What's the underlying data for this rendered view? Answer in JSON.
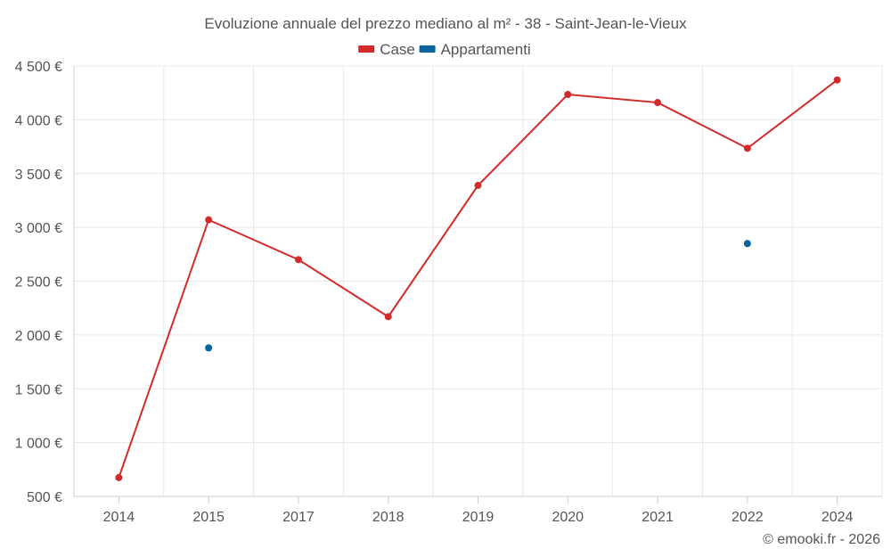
{
  "chart_data": {
    "type": "line",
    "title": "Evoluzione annuale del prezzo mediano al m² - 38 - Saint-Jean-le-Vieux",
    "categories": [
      "2014",
      "2015",
      "2017",
      "2018",
      "2019",
      "2020",
      "2021",
      "2022",
      "2024"
    ],
    "series": [
      {
        "name": "Case",
        "color": "#d32a2a",
        "values": [
          675,
          3070,
          2700,
          2170,
          3390,
          4235,
          4160,
          3735,
          4370
        ]
      },
      {
        "name": "Appartamenti",
        "color": "#07649e",
        "values": [
          null,
          1880,
          null,
          null,
          null,
          null,
          null,
          2850,
          null
        ]
      }
    ],
    "ylim": [
      500,
      4500
    ],
    "yticks": [
      500,
      1000,
      1500,
      2000,
      2500,
      3000,
      3500,
      4000,
      4500
    ],
    "ytick_labels": [
      "500 €",
      "1 000 €",
      "1 500 €",
      "2 000 €",
      "2 500 €",
      "3 000 €",
      "3 500 €",
      "4 000 €",
      "4 500 €"
    ],
    "xlabel": "",
    "ylabel": "",
    "grid": true,
    "legend_position": "top-center"
  },
  "credit": "© emooki.fr - 2026"
}
